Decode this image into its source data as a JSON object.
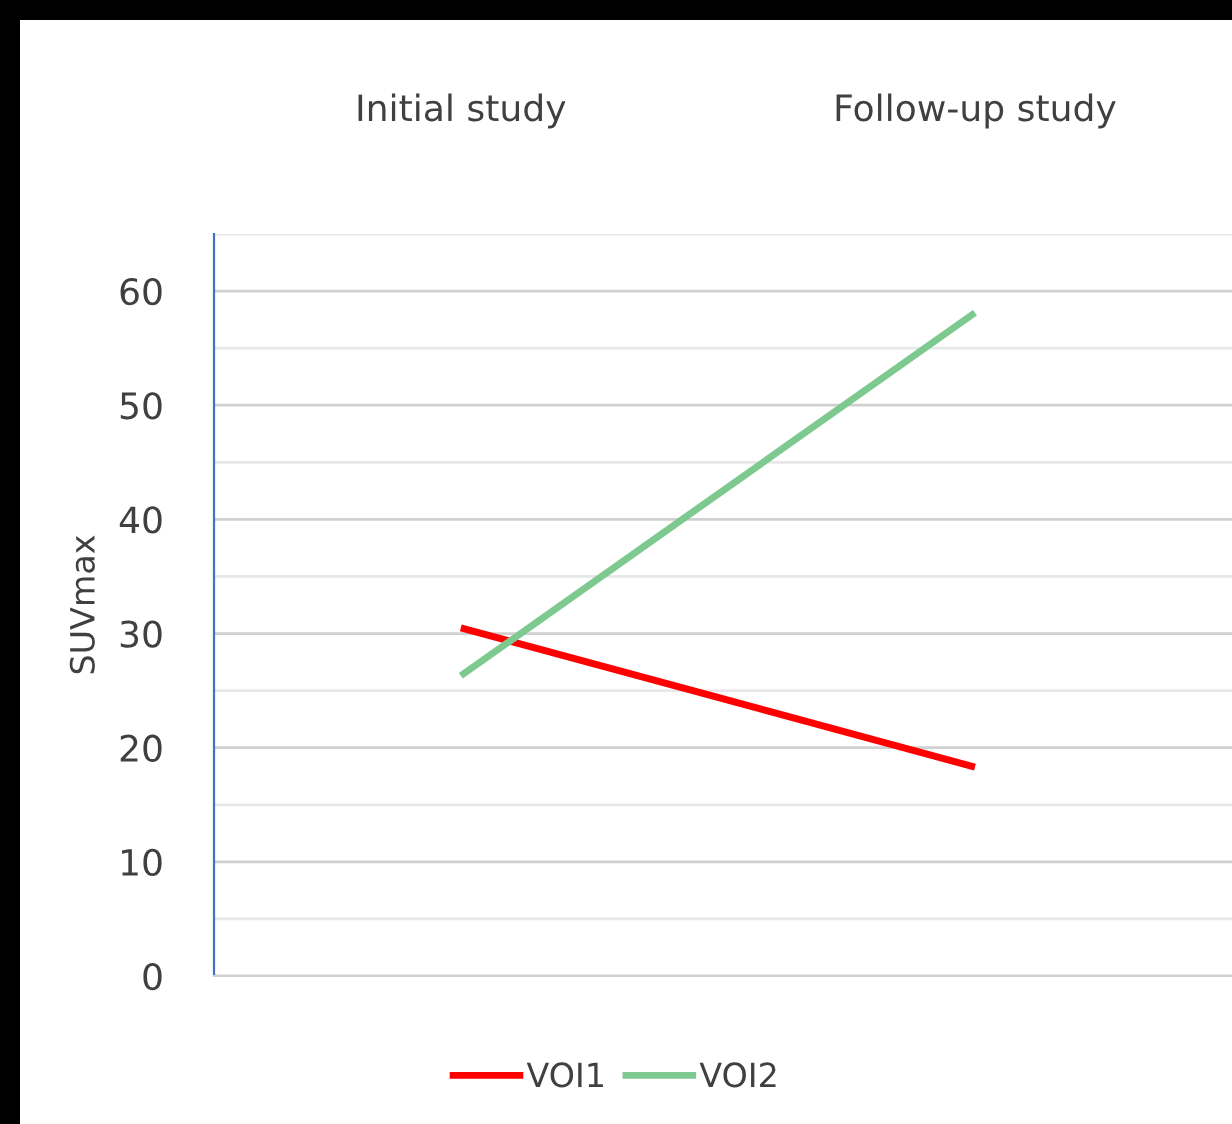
{
  "chart_data": {
    "type": "line",
    "ylabel": "SUVmax",
    "categories": [
      "Initial study",
      "Follow-up study"
    ],
    "series": [
      {
        "name": "VOI1",
        "color": "#ff0000",
        "values": [
          30.5,
          18.3
        ]
      },
      {
        "name": "VOI2",
        "color": "#7dc98f",
        "values": [
          26.3,
          58.1
        ]
      }
    ],
    "ylim": [
      0,
      65
    ],
    "yticks": [
      0,
      {
        "value": 5,
        "label": null
      },
      10,
      {
        "value": 15,
        "label": null
      },
      20,
      {
        "value": 25,
        "label": null
      },
      30,
      {
        "value": 35,
        "label": null
      },
      40,
      {
        "value": 45,
        "label": null
      },
      50,
      {
        "value": 55,
        "label": null
      },
      60,
      {
        "value": 65,
        "label": null
      }
    ],
    "grid": "y",
    "legend": "bottom",
    "marker": "none",
    "line_style": "solid"
  }
}
